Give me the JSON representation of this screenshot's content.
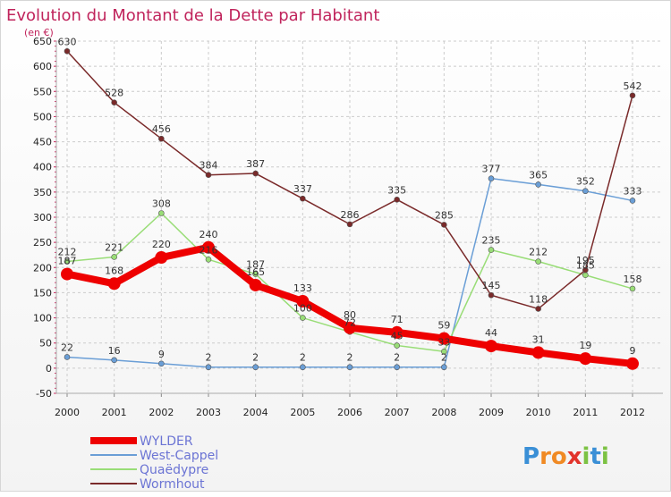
{
  "chart_data": {
    "type": "line",
    "title": "Evolution du Montant de la Dette par Habitant",
    "subtitle": "(en €)",
    "categories": [
      "2000",
      "2001",
      "2002",
      "2003",
      "2004",
      "2005",
      "2006",
      "2007",
      "2008",
      "2009",
      "2010",
      "2011",
      "2012"
    ],
    "ylim": [
      -50,
      650
    ],
    "yticks": [
      -50,
      0,
      50,
      100,
      150,
      200,
      250,
      300,
      350,
      400,
      450,
      500,
      550,
      600,
      650
    ],
    "grid": true,
    "legend_position": "bottom-left",
    "series": [
      {
        "name": "WYLDER",
        "color": "#ee0000",
        "width": 8,
        "marker": 7,
        "values": [
          187,
          168,
          220,
          240,
          165,
          133,
          80,
          71,
          59,
          44,
          31,
          19,
          9
        ]
      },
      {
        "name": "West-Cappel",
        "color": "#6a9ed6",
        "width": 1.5,
        "marker": 3,
        "values": [
          22,
          16,
          9,
          2,
          2,
          2,
          2,
          2,
          2,
          377,
          365,
          352,
          333
        ]
      },
      {
        "name": "Quaëdypre",
        "color": "#99dd77",
        "width": 1.5,
        "marker": 3,
        "values": [
          212,
          221,
          308,
          216,
          187,
          100,
          72,
          45,
          33,
          235,
          212,
          185,
          158
        ]
      },
      {
        "name": "Wormhout",
        "color": "#7a2a2a",
        "width": 1.5,
        "marker": 3,
        "values": [
          630,
          528,
          456,
          384,
          387,
          337,
          286,
          335,
          285,
          145,
          118,
          195,
          542
        ]
      }
    ]
  },
  "logo": {
    "text": "Proxiti",
    "letters": [
      {
        "ch": "P",
        "color": "#3a8fd6"
      },
      {
        "ch": "r",
        "color": "#f08a24"
      },
      {
        "ch": "o",
        "color": "#f08a24"
      },
      {
        "ch": "x",
        "color": "#e2342c"
      },
      {
        "ch": "i",
        "color": "#7cc243"
      },
      {
        "ch": "t",
        "color": "#3a8fd6"
      },
      {
        "ch": "i",
        "color": "#7cc243"
      }
    ]
  }
}
